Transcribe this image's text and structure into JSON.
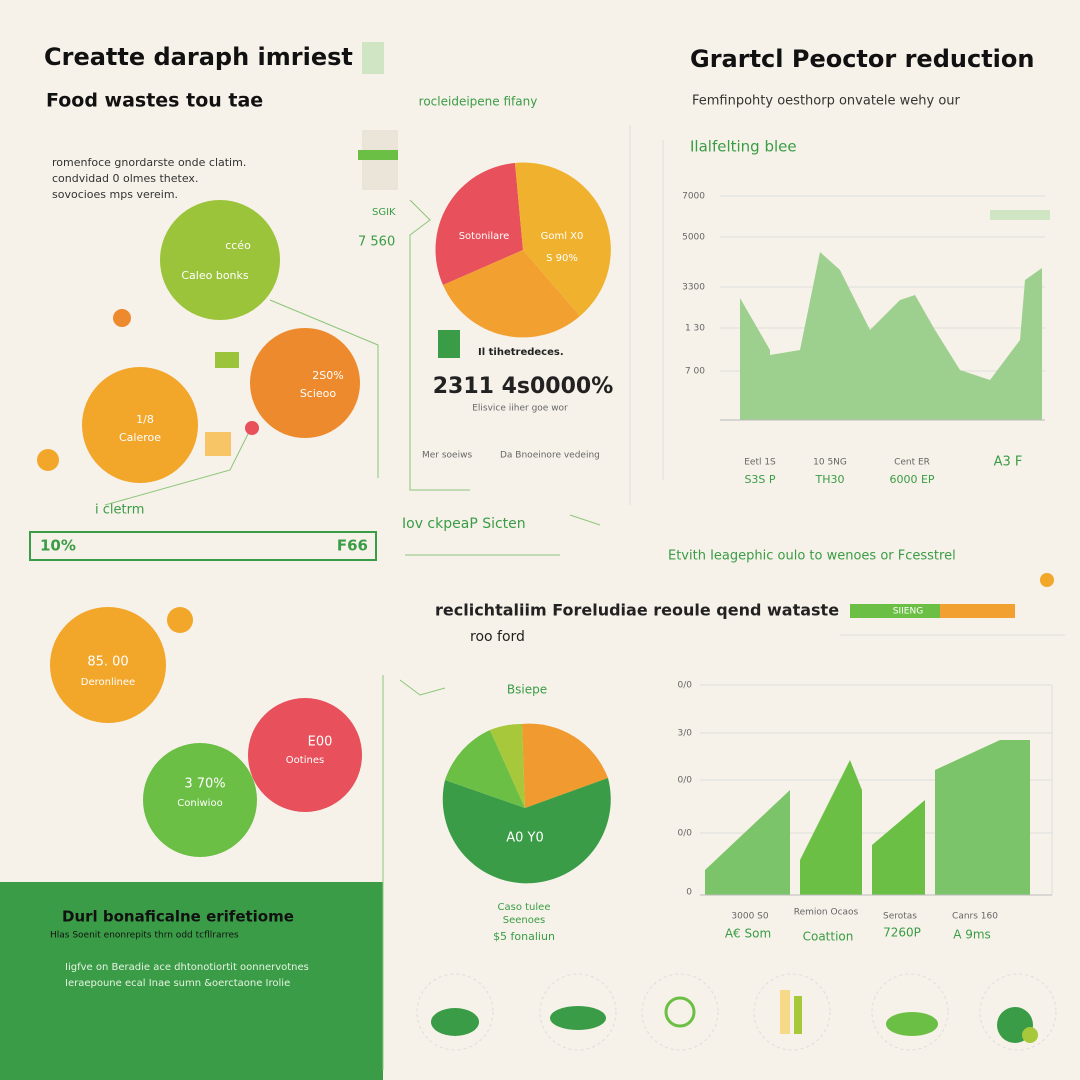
{
  "left_top": {
    "title": "Creatte daraph imriest",
    "subtitle": "Food wastes tou tae",
    "notes": [
      "romenfoce gnordarste onde clatim.",
      "condvidad 0 olmes thetex.",
      "sovocioes mps vereim."
    ],
    "bubbles": [
      "ccéo",
      "Caleo  bonks",
      "2S0%",
      "Scieoo",
      "1/8",
      "Caleroe"
    ],
    "caption": "i cletrm",
    "bar_left": "10%",
    "bar_right": "F66"
  },
  "pie_top": {
    "heading": "rocleideipene fifany",
    "side": [
      "SGIK",
      "7 560"
    ],
    "slices": [
      "Sotonilare",
      "Goml X0",
      "S 90%"
    ],
    "legend": "Il tihetredeces.",
    "big_number": "2311 4s0000%",
    "big_caption": "Elisvice iiher goe wor",
    "foot": [
      "Mer soeiws",
      "Da Bnoeinore vedeing"
    ]
  },
  "right_top": {
    "title": "Grartcl Peoctor reduction",
    "subtitle": "Femfinpohty oesthorp onvatele wehy our",
    "chart_title": "Ilalfelting blee",
    "y_labels": [
      "7000",
      "5000",
      "3300",
      "1 30",
      "7 00"
    ],
    "x_labels": [
      "Eetl 1S",
      "S3S P",
      "10 5NG",
      "TH30",
      "Cent ER",
      "6000 EP",
      "A3 F"
    ]
  },
  "middle": {
    "left": "Iov ckpeaP Sicten",
    "right": "Etvith Ieagephic oulo to wenoes or Fcesstrel",
    "headline": "reclichtaliim Foreludiae reoule qend wataste",
    "headline2": "roo ford",
    "bar": "SIIENG"
  },
  "left_bottom": {
    "bubbles": [
      "85. 00",
      "Deronlinee",
      "E00",
      "Ootines",
      "3 70%",
      "Coniwioo"
    ],
    "box_title": "Durl bonaficalne erifetiome",
    "box_sub": "Hlas Soenit enonrepits thrn   odd tcfllrarres",
    "box_lines": [
      "Iigfve on Beradie ace dhtonotiortit oonnervotnes",
      "Ieraepoune ecal Inae sumn &oerctaone Irolie"
    ]
  },
  "pie_bottom": {
    "heading": "Bsiepe",
    "slice": "A0 Y0",
    "labels": [
      "Caso tulee",
      "Seenoes",
      "$5 fonaliun"
    ]
  },
  "right_bottom": {
    "y_labels": [
      "0/0",
      "3/0",
      "0/0",
      "0/0",
      "0"
    ],
    "x_small": [
      "3000 S0",
      "Remion Ocaos",
      "Serotas",
      "Canrs 160"
    ],
    "x_labels": [
      "A€ Som",
      "Coattion",
      "7260P",
      "A 9ms"
    ]
  }
}
